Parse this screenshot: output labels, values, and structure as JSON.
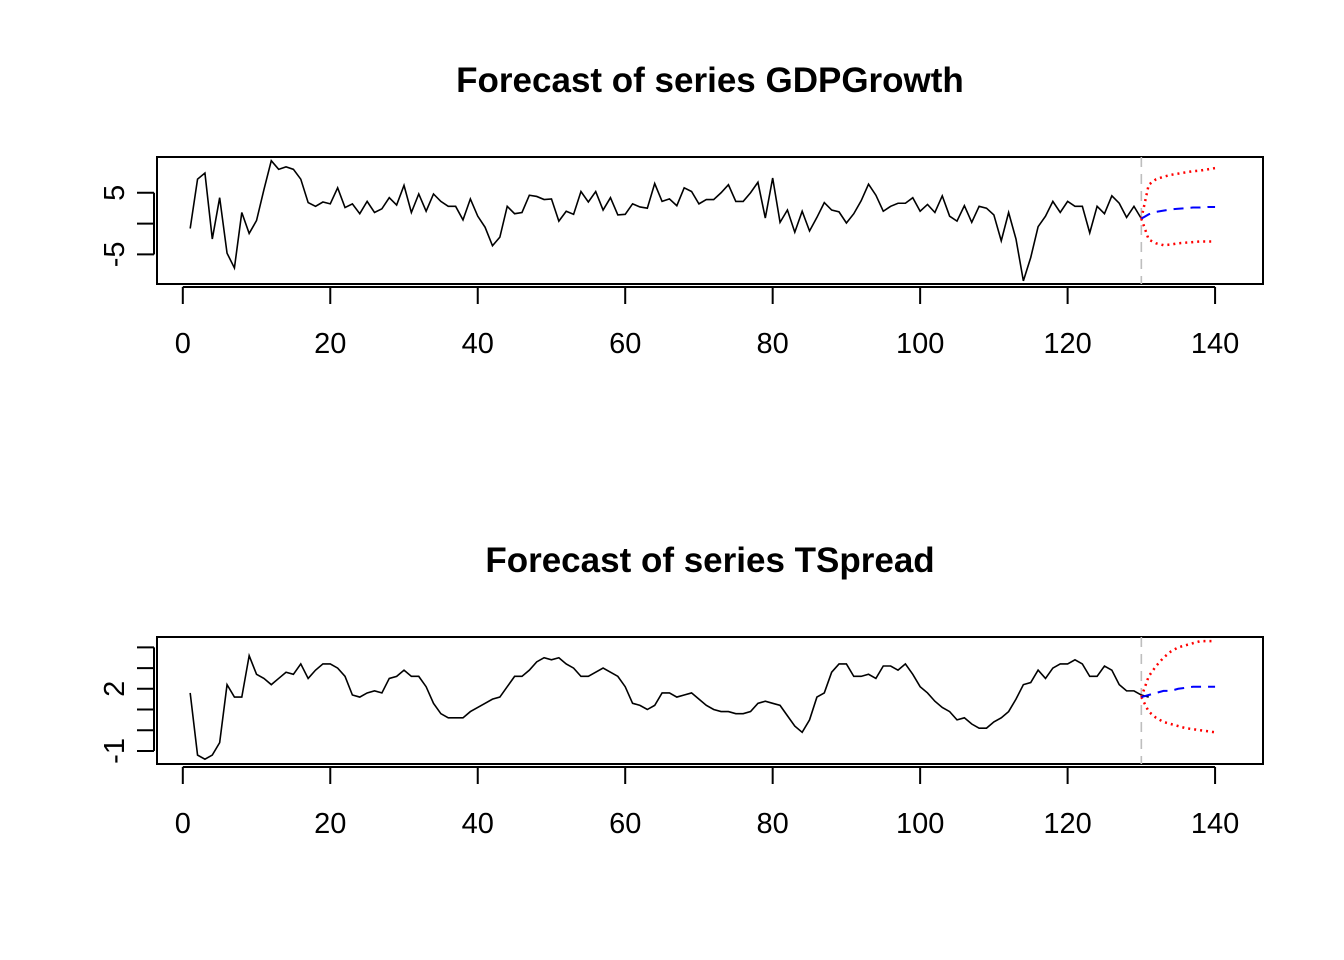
{
  "chart_data": [
    {
      "type": "line",
      "title": "Forecast of series GDPGrowth",
      "xlabel": "",
      "ylabel": "",
      "xlim": [
        -3.5,
        146.5
      ],
      "ylim": [
        -9.8,
        10.8
      ],
      "x_ticks": [
        0,
        20,
        40,
        60,
        80,
        100,
        120,
        140
      ],
      "x_tick_labels": [
        "0",
        "20",
        "40",
        "60",
        "80",
        "100",
        "120",
        "140"
      ],
      "y_ticks": [
        -5,
        0,
        5
      ],
      "y_tick_labels": [
        "-5",
        "",
        "5"
      ],
      "forecast_origin": 130,
      "colors": {
        "history": "#000000",
        "forecast": "#0000ff",
        "interval": "#ff0000",
        "origin_line": "#bebebe"
      },
      "history": {
        "x_start": 1,
        "values": [
          -0.8,
          7.2,
          8.2,
          -2.5,
          4.2,
          -4.8,
          -7.2,
          1.8,
          -1.6,
          0.5,
          5.5,
          10.2,
          8.8,
          9.2,
          8.8,
          7.2,
          3.4,
          2.8,
          3.5,
          3.2,
          5.8,
          2.6,
          3.2,
          1.6,
          3.6,
          1.8,
          2.4,
          4.2,
          3.0,
          6.2,
          1.8,
          4.8,
          2.0,
          4.8,
          3.6,
          2.8,
          2.8,
          0.6,
          4.0,
          1.2,
          -0.6,
          -3.6,
          -2.2,
          2.8,
          1.6,
          1.8,
          4.6,
          4.4,
          3.9,
          4.0,
          0.4,
          2.0,
          1.5,
          5.2,
          3.5,
          5.2,
          2.2,
          4.2,
          1.4,
          1.5,
          3.2,
          2.7,
          2.5,
          6.5,
          3.6,
          4.0,
          2.9,
          5.8,
          5.2,
          3.2,
          3.9,
          3.9,
          5.0,
          6.3,
          3.6,
          3.6,
          5.0,
          6.7,
          0.9,
          7.4,
          0.2,
          2.2,
          -1.4,
          2.0,
          -1.2,
          1.0,
          3.4,
          2.2,
          1.9,
          0.1,
          1.6,
          3.7,
          6.4,
          4.6,
          2.0,
          2.8,
          3.3,
          3.3,
          4.2,
          2.0,
          3.1,
          1.8,
          4.5,
          1.2,
          0.4,
          2.9,
          0.2,
          2.8,
          2.5,
          1.4,
          -2.8,
          1.8,
          -2.5,
          -9.3,
          -5.5,
          -0.5,
          1.2,
          3.6,
          1.8,
          3.6,
          2.8,
          2.8,
          -1.5,
          2.8,
          1.6,
          4.5,
          3.3,
          1.0,
          2.8,
          0.8
        ]
      },
      "forecast": {
        "x": [
          130,
          131,
          132,
          133,
          134,
          135,
          136,
          137,
          138,
          139,
          140
        ],
        "values": [
          0.8,
          1.5,
          1.9,
          2.1,
          2.3,
          2.4,
          2.5,
          2.6,
          2.6,
          2.7,
          2.7
        ]
      },
      "upper": {
        "x": [
          130,
          131,
          132,
          133,
          134,
          135,
          136,
          137,
          138,
          139,
          140
        ],
        "values": [
          0.8,
          6.3,
          7.2,
          7.6,
          7.9,
          8.1,
          8.3,
          8.5,
          8.6,
          8.8,
          9.0
        ]
      },
      "lower": {
        "x": [
          130,
          131,
          132,
          133,
          134,
          135,
          136,
          137,
          138,
          139,
          140
        ],
        "values": [
          0.8,
          -2.6,
          -3.2,
          -3.5,
          -3.4,
          -3.2,
          -3.1,
          -3.0,
          -2.9,
          -2.9,
          -2.9
        ]
      }
    },
    {
      "type": "line",
      "title": "Forecast of series TSpread",
      "xlabel": "",
      "ylabel": "",
      "xlim": [
        -3.5,
        146.5
      ],
      "ylim": [
        -1.63,
        4.5
      ],
      "x_ticks": [
        0,
        20,
        40,
        60,
        80,
        100,
        120,
        140
      ],
      "x_tick_labels": [
        "0",
        "20",
        "40",
        "60",
        "80",
        "100",
        "120",
        "140"
      ],
      "y_ticks": [
        -1,
        0,
        1,
        2,
        3,
        4
      ],
      "y_tick_labels": [
        "-1",
        "",
        "",
        "2",
        "",
        ""
      ],
      "forecast_origin": 130,
      "colors": {
        "history": "#000000",
        "forecast": "#0000ff",
        "interval": "#ff0000",
        "origin_line": "#bebebe"
      },
      "history": {
        "x_start": 1,
        "values": [
          1.8,
          -1.2,
          -1.4,
          -1.2,
          -0.6,
          2.2,
          1.6,
          1.6,
          3.6,
          2.7,
          2.5,
          2.2,
          2.5,
          2.8,
          2.7,
          3.2,
          2.5,
          2.9,
          3.2,
          3.2,
          3.0,
          2.6,
          1.7,
          1.6,
          1.8,
          1.9,
          1.8,
          2.5,
          2.6,
          2.9,
          2.6,
          2.6,
          2.1,
          1.3,
          0.8,
          0.6,
          0.6,
          0.6,
          0.9,
          1.1,
          1.3,
          1.5,
          1.6,
          2.1,
          2.6,
          2.6,
          2.9,
          3.3,
          3.5,
          3.4,
          3.5,
          3.2,
          3.0,
          2.6,
          2.6,
          2.8,
          3.0,
          2.8,
          2.6,
          2.1,
          1.3,
          1.2,
          1.0,
          1.2,
          1.8,
          1.8,
          1.6,
          1.7,
          1.8,
          1.5,
          1.2,
          1.0,
          0.9,
          0.9,
          0.8,
          0.8,
          0.9,
          1.3,
          1.4,
          1.3,
          1.2,
          0.7,
          0.2,
          -0.1,
          0.5,
          1.6,
          1.8,
          2.8,
          3.2,
          3.2,
          2.6,
          2.6,
          2.7,
          2.5,
          3.1,
          3.1,
          2.9,
          3.2,
          2.7,
          2.1,
          1.8,
          1.4,
          1.1,
          0.9,
          0.5,
          0.6,
          0.3,
          0.1,
          0.1,
          0.4,
          0.6,
          0.9,
          1.5,
          2.2,
          2.3,
          2.9,
          2.5,
          3.0,
          3.2,
          3.2,
          3.4,
          3.2,
          2.6,
          2.6,
          3.1,
          2.9,
          2.2,
          1.9,
          1.9,
          1.7,
          1.6
        ]
      },
      "forecast": {
        "x": [
          130,
          131,
          132,
          133,
          134,
          135,
          136,
          137,
          138,
          139,
          140
        ],
        "values": [
          1.6,
          1.7,
          1.8,
          1.9,
          1.9,
          2.0,
          2.05,
          2.1,
          2.1,
          2.1,
          2.1
        ]
      },
      "upper": {
        "x": [
          130,
          131,
          132,
          133,
          134,
          135,
          136,
          137,
          138,
          139,
          140
        ],
        "values": [
          1.6,
          2.6,
          3.1,
          3.5,
          3.8,
          4.0,
          4.1,
          4.2,
          4.3,
          4.3,
          4.3
        ]
      },
      "lower": {
        "x": [
          130,
          131,
          132,
          133,
          134,
          135,
          136,
          137,
          138,
          139,
          140
        ],
        "values": [
          1.6,
          0.9,
          0.6,
          0.4,
          0.3,
          0.2,
          0.1,
          0.05,
          0.0,
          -0.05,
          -0.1
        ]
      }
    }
  ]
}
